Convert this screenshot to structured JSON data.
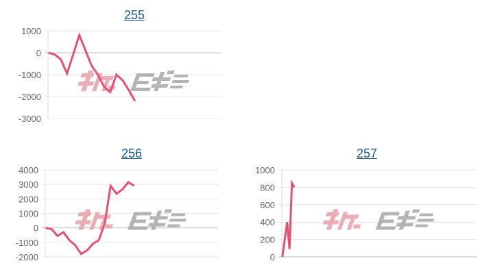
{
  "watermark": {
    "text": "みんレポ",
    "color_left": "#e8a0a8",
    "color_right": "#a8a8a8"
  },
  "line_color": "#e8506e",
  "chart_data": [
    {
      "type": "line",
      "title": "255",
      "ylim": [
        -3000,
        1000
      ],
      "yticks": [
        "1000",
        "0",
        "-1000",
        "-2000",
        "-3000"
      ],
      "ytick_values": [
        1000,
        0,
        -1000,
        -2000,
        -3000
      ],
      "grid": true,
      "x_count": 29,
      "values": [
        0,
        -80,
        -300,
        -950,
        -80,
        800,
        100,
        -600,
        -1000,
        -1550,
        -1800,
        -1000,
        -1250,
        -1700,
        -2200
      ]
    },
    {
      "type": "line",
      "title": "256",
      "ylim": [
        -2000,
        4000
      ],
      "yticks": [
        "4000",
        "3000",
        "2000",
        "1000",
        "0",
        "-1000",
        "-2000"
      ],
      "ytick_values": [
        4000,
        3000,
        2000,
        1000,
        0,
        -1000,
        -2000
      ],
      "grid": true,
      "x_count": 30,
      "values": [
        0,
        -100,
        -550,
        -300,
        -850,
        -1200,
        -1800,
        -1550,
        -1100,
        -850,
        300,
        2900,
        2350,
        2650,
        3150,
        2900
      ]
    },
    {
      "type": "line",
      "title": "257",
      "ylim": [
        0,
        1000
      ],
      "yticks": [
        "1000",
        "800",
        "600",
        "400",
        "200",
        "0"
      ],
      "ytick_values": [
        1000,
        800,
        600,
        400,
        200,
        0
      ],
      "grid": true,
      "x_count": 82,
      "values": [
        0,
        200,
        400,
        90,
        850,
        800
      ]
    }
  ]
}
